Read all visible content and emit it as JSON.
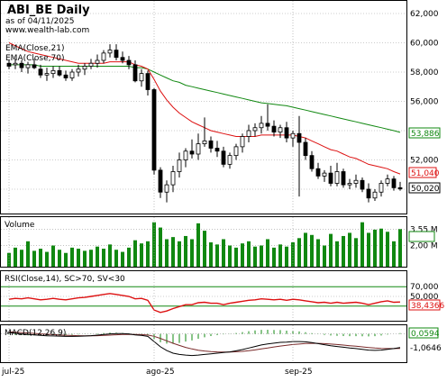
{
  "header": {
    "title": "ABI_BE Daily",
    "as_of": "as of 04/11/2025",
    "site": "www.wealth-lab.com",
    "ema21_label": "EMA(Close,21)",
    "ema70_label": "EMA(Close,70)"
  },
  "colors": {
    "up_candle": "#ffffff",
    "down_candle": "#000000",
    "ema21": "#dd1111",
    "ema70": "#118811",
    "volume": "#118811",
    "rsi_line": "#dd1111",
    "rsi_bands": "#118811",
    "macd": "#000000",
    "macd_signal": "#7a2a2a",
    "macd_hist": "#118811",
    "grid": "#9a9a9a"
  },
  "chart_data": [
    {
      "type": "candlestick",
      "name": "price",
      "ylim": [
        48.4,
        62.8
      ],
      "yticks": [
        "62,000",
        "60,000",
        "58,000",
        "56,000",
        "54,000",
        "52,000",
        "50,000"
      ],
      "ytick_values": [
        62,
        60,
        58,
        56,
        54,
        52,
        50
      ],
      "x_labels": [
        "jul-25",
        "ago-25",
        "sep-25"
      ],
      "x_label_index": [
        0,
        23,
        45
      ],
      "grid": true,
      "ohlc": [
        [
          58.6,
          58.8,
          58.2,
          58.4
        ],
        [
          58.5,
          58.9,
          58.2,
          58.6
        ],
        [
          58.6,
          58.8,
          58.0,
          58.3
        ],
        [
          58.3,
          58.7,
          57.9,
          58.5
        ],
        [
          58.5,
          58.9,
          58.2,
          58.3
        ],
        [
          58.2,
          58.5,
          57.6,
          57.8
        ],
        [
          57.8,
          58.3,
          57.4,
          57.9
        ],
        [
          57.9,
          58.4,
          57.6,
          58.1
        ],
        [
          58.1,
          58.4,
          57.7,
          57.8
        ],
        [
          57.8,
          58.1,
          57.4,
          57.6
        ],
        [
          57.6,
          58.2,
          57.4,
          58.0
        ],
        [
          58.0,
          58.5,
          57.7,
          58.2
        ],
        [
          58.2,
          58.6,
          57.8,
          58.4
        ],
        [
          58.4,
          58.9,
          58.2,
          58.6
        ],
        [
          58.6,
          59.2,
          58.3,
          58.8
        ],
        [
          58.8,
          59.5,
          58.6,
          59.3
        ],
        [
          59.3,
          59.9,
          59.0,
          59.5
        ],
        [
          59.5,
          59.9,
          58.8,
          59.0
        ],
        [
          59.0,
          59.4,
          58.6,
          58.8
        ],
        [
          58.8,
          59.1,
          58.2,
          58.5
        ],
        [
          58.5,
          58.8,
          57.3,
          57.4
        ],
        [
          57.4,
          58.2,
          57.0,
          57.9
        ],
        [
          57.9,
          58.1,
          56.4,
          56.8
        ],
        [
          56.8,
          56.9,
          51.0,
          51.3
        ],
        [
          51.3,
          51.5,
          49.4,
          49.8
        ],
        [
          49.8,
          50.6,
          49.1,
          50.3
        ],
        [
          50.3,
          51.6,
          49.8,
          51.2
        ],
        [
          51.2,
          52.5,
          50.8,
          52.0
        ],
        [
          52.0,
          52.8,
          51.5,
          52.6
        ],
        [
          52.6,
          53.4,
          52.1,
          52.4
        ],
        [
          52.4,
          53.8,
          52.0,
          53.1
        ],
        [
          53.1,
          54.9,
          52.9,
          53.3
        ],
        [
          53.3,
          53.6,
          52.5,
          52.8
        ],
        [
          52.8,
          53.3,
          52.2,
          52.6
        ],
        [
          52.6,
          52.9,
          51.5,
          51.7
        ],
        [
          51.7,
          52.5,
          51.4,
          52.3
        ],
        [
          52.3,
          53.1,
          52.0,
          52.9
        ],
        [
          52.9,
          53.8,
          52.5,
          53.6
        ],
        [
          53.6,
          54.4,
          53.2,
          54.0
        ],
        [
          54.0,
          54.5,
          53.6,
          54.2
        ],
        [
          54.2,
          55.0,
          53.8,
          54.5
        ],
        [
          54.5,
          55.8,
          54.0,
          54.3
        ],
        [
          54.3,
          54.7,
          53.6,
          53.9
        ],
        [
          53.9,
          54.4,
          53.5,
          54.2
        ],
        [
          54.2,
          54.6,
          53.2,
          53.5
        ],
        [
          53.5,
          54.0,
          52.9,
          53.8
        ],
        [
          53.8,
          55.0,
          49.5,
          53.2
        ],
        [
          53.2,
          53.5,
          52.0,
          52.3
        ],
        [
          52.3,
          52.6,
          51.2,
          51.4
        ],
        [
          51.4,
          51.8,
          50.7,
          50.9
        ],
        [
          50.9,
          51.3,
          50.5,
          51.1
        ],
        [
          51.1,
          51.6,
          50.2,
          50.4
        ],
        [
          50.4,
          51.8,
          50.2,
          51.2
        ],
        [
          51.2,
          51.4,
          50.1,
          50.3
        ],
        [
          50.3,
          50.7,
          50.0,
          50.4
        ],
        [
          50.4,
          51.0,
          50.1,
          50.6
        ],
        [
          50.6,
          50.8,
          49.8,
          50.0
        ],
        [
          50.0,
          50.4,
          49.1,
          49.4
        ],
        [
          49.4,
          50.0,
          49.2,
          49.8
        ],
        [
          49.8,
          50.6,
          49.5,
          50.4
        ],
        [
          50.4,
          51.0,
          50.2,
          50.7
        ],
        [
          50.7,
          50.9,
          49.9,
          50.1
        ],
        [
          50.1,
          50.5,
          49.9,
          50.02
        ]
      ],
      "series": [
        {
          "name": "EMA(Close,21)",
          "last_label": "51,040",
          "values": [
            60.0,
            59.8,
            59.6,
            59.4,
            59.3,
            59.2,
            59.1,
            59.0,
            58.9,
            58.8,
            58.7,
            58.6,
            58.6,
            58.6,
            58.6,
            58.6,
            58.7,
            58.7,
            58.7,
            58.7,
            58.5,
            58.4,
            58.2,
            57.5,
            56.7,
            56.1,
            55.6,
            55.2,
            54.9,
            54.6,
            54.4,
            54.2,
            54.0,
            53.9,
            53.8,
            53.7,
            53.6,
            53.6,
            53.6,
            53.6,
            53.7,
            53.7,
            53.7,
            53.7,
            53.7,
            53.7,
            53.6,
            53.5,
            53.3,
            53.1,
            52.9,
            52.7,
            52.6,
            52.4,
            52.2,
            52.1,
            51.9,
            51.7,
            51.6,
            51.5,
            51.4,
            51.2,
            51.04
          ]
        },
        {
          "name": "EMA(Close,70)",
          "last_label": "53,886",
          "values": [
            58.5,
            58.5,
            58.5,
            58.5,
            58.5,
            58.4,
            58.4,
            58.4,
            58.4,
            58.4,
            58.4,
            58.4,
            58.4,
            58.4,
            58.4,
            58.4,
            58.4,
            58.4,
            58.4,
            58.4,
            58.3,
            58.3,
            58.2,
            58.0,
            57.8,
            57.6,
            57.4,
            57.3,
            57.1,
            57.0,
            56.9,
            56.8,
            56.7,
            56.6,
            56.5,
            56.4,
            56.3,
            56.2,
            56.1,
            56.0,
            55.9,
            55.85,
            55.8,
            55.75,
            55.7,
            55.6,
            55.5,
            55.4,
            55.3,
            55.2,
            55.1,
            55.0,
            54.9,
            54.8,
            54.7,
            54.6,
            54.5,
            54.4,
            54.3,
            54.2,
            54.1,
            54.0,
            53.886
          ]
        }
      ],
      "last_close_label": "50,020"
    },
    {
      "type": "bar",
      "name": "Volume",
      "title": "Volume",
      "ylim": [
        0,
        4.6
      ],
      "yticks": [
        "3,55 M",
        "2,00 M"
      ],
      "ytick_values": [
        3.55,
        2.0
      ],
      "values": [
        1.3,
        1.8,
        1.6,
        2.4,
        1.5,
        1.7,
        1.4,
        2.0,
        1.6,
        1.3,
        1.8,
        1.7,
        1.5,
        1.6,
        1.9,
        1.7,
        2.1,
        1.6,
        1.4,
        1.8,
        2.5,
        2.2,
        2.4,
        4.2,
        3.7,
        2.6,
        2.8,
        2.4,
        2.9,
        2.6,
        4.1,
        3.4,
        2.3,
        2.1,
        2.6,
        2.0,
        1.8,
        2.2,
        2.4,
        1.9,
        2.0,
        2.6,
        1.8,
        2.1,
        1.9,
        2.3,
        2.7,
        3.2,
        3.0,
        2.6,
        2.0,
        3.1,
        2.4,
        2.9,
        3.2,
        2.7,
        4.2,
        3.2,
        3.5,
        3.6,
        3.3,
        2.4,
        3.55
      ]
    },
    {
      "type": "line",
      "name": "RSI",
      "title": "RSI(Close,14), SC>70, SV<30",
      "ylim": [
        0,
        100
      ],
      "yticks": [
        "70,000",
        "50,000",
        "30,000"
      ],
      "ytick_values": [
        70,
        50,
        30
      ],
      "last_label": "38,4366",
      "values": [
        44,
        46,
        45,
        47,
        45,
        43,
        44,
        46,
        44,
        43,
        45,
        47,
        48,
        50,
        52,
        54,
        56,
        54,
        52,
        50,
        45,
        46,
        42,
        22,
        17,
        20,
        25,
        29,
        33,
        33,
        37,
        38,
        36,
        36,
        33,
        36,
        38,
        40,
        42,
        43,
        45,
        44,
        43,
        44,
        42,
        44,
        43,
        41,
        39,
        37,
        38,
        36,
        38,
        36,
        37,
        38,
        36,
        33,
        36,
        39,
        41,
        38,
        38.4366
      ]
    },
    {
      "type": "line",
      "name": "MACD",
      "title": "MACD(12,26,9)",
      "ylim": [
        -2.2,
        0.6
      ],
      "yticks": [
        "0,0594",
        "-1,0646"
      ],
      "ytick_values": [
        0.0594,
        -1.0646
      ],
      "series": [
        {
          "name": "MACD",
          "values": [
            0.1,
            0.05,
            0.0,
            -0.05,
            -0.08,
            -0.12,
            -0.15,
            -0.16,
            -0.18,
            -0.2,
            -0.2,
            -0.19,
            -0.17,
            -0.14,
            -0.1,
            -0.05,
            0.0,
            0.02,
            0.02,
            0.0,
            -0.08,
            -0.12,
            -0.2,
            -0.6,
            -1.0,
            -1.3,
            -1.5,
            -1.6,
            -1.65,
            -1.68,
            -1.65,
            -1.6,
            -1.55,
            -1.5,
            -1.45,
            -1.4,
            -1.32,
            -1.22,
            -1.1,
            -0.98,
            -0.86,
            -0.78,
            -0.72,
            -0.66,
            -0.64,
            -0.6,
            -0.6,
            -0.62,
            -0.68,
            -0.76,
            -0.84,
            -0.92,
            -0.98,
            -1.04,
            -1.1,
            -1.14,
            -1.2,
            -1.26,
            -1.28,
            -1.26,
            -1.2,
            -1.14,
            -1.0646
          ]
        },
        {
          "name": "Signal",
          "values": [
            0.15,
            0.13,
            0.1,
            0.07,
            0.04,
            0.0,
            -0.03,
            -0.06,
            -0.09,
            -0.11,
            -0.13,
            -0.14,
            -0.15,
            -0.15,
            -0.14,
            -0.12,
            -0.1,
            -0.07,
            -0.05,
            -0.04,
            -0.05,
            -0.06,
            -0.09,
            -0.19,
            -0.35,
            -0.54,
            -0.73,
            -0.9,
            -1.05,
            -1.17,
            -1.27,
            -1.33,
            -1.38,
            -1.4,
            -1.41,
            -1.41,
            -1.39,
            -1.36,
            -1.31,
            -1.25,
            -1.17,
            -1.1,
            -1.02,
            -0.95,
            -0.89,
            -0.83,
            -0.79,
            -0.75,
            -0.74,
            -0.74,
            -0.76,
            -0.79,
            -0.83,
            -0.87,
            -0.92,
            -0.96,
            -1.01,
            -1.06,
            -1.1,
            -1.13,
            -1.14,
            -1.14,
            -1.13
          ]
        },
        {
          "name": "Histogram",
          "last_label": "0,0594",
          "values": [
            -0.05,
            -0.08,
            -0.1,
            -0.12,
            -0.12,
            -0.12,
            -0.12,
            -0.1,
            -0.09,
            -0.09,
            -0.07,
            -0.05,
            -0.02,
            0.01,
            0.04,
            0.07,
            0.1,
            0.09,
            0.07,
            0.04,
            -0.03,
            -0.06,
            -0.11,
            -0.41,
            -0.65,
            -0.76,
            -0.77,
            -0.7,
            -0.6,
            -0.51,
            -0.38,
            -0.27,
            -0.17,
            -0.1,
            -0.04,
            0.01,
            0.07,
            0.14,
            0.21,
            0.27,
            0.31,
            0.32,
            0.3,
            0.29,
            0.25,
            0.23,
            0.19,
            0.13,
            0.06,
            -0.02,
            -0.08,
            -0.13,
            -0.15,
            -0.17,
            -0.18,
            -0.18,
            -0.19,
            -0.2,
            -0.18,
            -0.13,
            -0.06,
            0.0,
            0.0594
          ]
        }
      ]
    }
  ]
}
